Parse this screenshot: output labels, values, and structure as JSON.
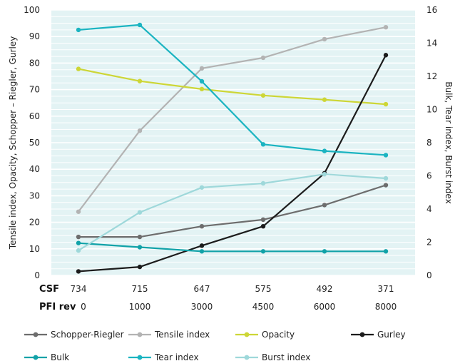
{
  "chart_data": {
    "type": "line",
    "csf_label": "CSF",
    "pfi_label": "PFI rev",
    "csf": [
      "734",
      "715",
      "647",
      "575",
      "492",
      "371"
    ],
    "pfi": [
      "0",
      "1000",
      "3000",
      "4500",
      "6000",
      "8000"
    ],
    "y_left": {
      "label": "Tensile index, Opacity, Schopper – Riegler, Gurley",
      "min": 0,
      "max": 100,
      "ticks": [
        "0",
        "10",
        "20",
        "30",
        "40",
        "50",
        "60",
        "70",
        "80",
        "90",
        "100"
      ]
    },
    "y_right": {
      "label": "Bulk, Tear index, Burst index",
      "min": 0,
      "max": 16,
      "ticks": [
        "0",
        "2",
        "4",
        "6",
        "8",
        "10",
        "12",
        "14",
        "16"
      ]
    },
    "background": {
      "bands": "#e3f3f4",
      "stripes": "#ffffff"
    },
    "series": [
      {
        "name": "Schopper-Riegler",
        "axis": "left",
        "color": "#6d6d6d",
        "values": [
          14.5,
          14.5,
          18.5,
          21,
          26.5,
          34
        ]
      },
      {
        "name": "Tensile index",
        "axis": "left",
        "color": "#b3b3b3",
        "values": [
          24,
          54.5,
          78,
          82,
          89,
          93.5
        ]
      },
      {
        "name": "Opacity",
        "axis": "left",
        "color": "#cdd636",
        "values": [
          77.8,
          73.2,
          70.2,
          67.8,
          66.2,
          64.5
        ]
      },
      {
        "name": "Gurley",
        "axis": "left",
        "color": "#1c1c1c",
        "values": [
          1.5,
          3.2,
          11.2,
          18.5,
          38.5,
          83
        ]
      },
      {
        "name": "Bulk",
        "axis": "right",
        "color": "#11a2a8",
        "values": [
          1.95,
          1.7,
          1.45,
          1.45,
          1.45,
          1.45
        ]
      },
      {
        "name": "Tear index",
        "axis": "right",
        "color": "#1bb4c1",
        "values": [
          14.8,
          15.1,
          11.7,
          7.9,
          7.5,
          7.25
        ]
      },
      {
        "name": "Burst index",
        "axis": "right",
        "color": "#9ed8da",
        "values": [
          1.5,
          3.8,
          5.3,
          5.55,
          6.1,
          5.85
        ]
      }
    ],
    "legend": [
      [
        {
          "name": "Schopper-Riegler",
          "color": "#6d6d6d"
        },
        {
          "name": "Tensile index",
          "color": "#b3b3b3"
        },
        {
          "name": "Opacity",
          "color": "#cdd636"
        },
        {
          "name": "Gurley",
          "color": "#1c1c1c"
        }
      ],
      [
        {
          "name": "Bulk",
          "color": "#11a2a8"
        },
        {
          "name": "Tear index",
          "color": "#1bb4c1"
        },
        {
          "name": "Burst index",
          "color": "#9ed8da"
        }
      ]
    ]
  }
}
